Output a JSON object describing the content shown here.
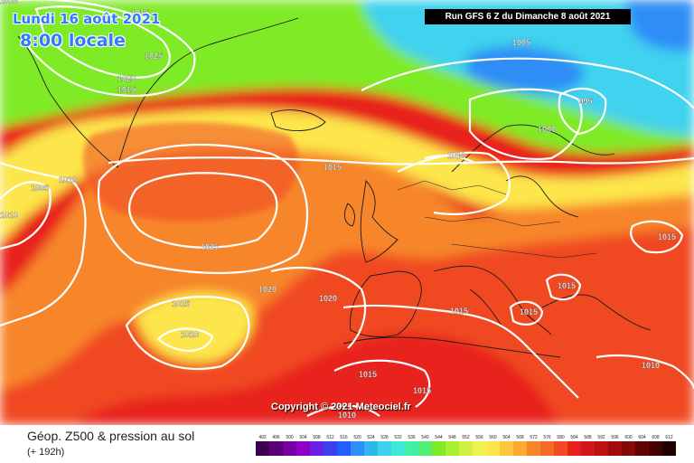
{
  "header": {
    "date": "Lundi 16 août 2021",
    "time": "8:00 locale",
    "run": "Run GFS 6 Z du Dimanche 8 août 2021"
  },
  "copyright": "Copyright © 2021 Meteociel.fr",
  "footer": {
    "title": "Géop. Z500 & pression au sol",
    "subtitle": "(+ 192h)"
  },
  "map": {
    "zones": [
      {
        "name": "high-geopotential-dark-red",
        "color": "#e8201e"
      },
      {
        "name": "high-geopotential-red",
        "color": "#f04a24"
      },
      {
        "name": "geopotential-orange",
        "color": "#f7862a"
      },
      {
        "name": "geopotential-yellow",
        "color": "#fde64c"
      },
      {
        "name": "geopotential-green",
        "color": "#7fea28"
      },
      {
        "name": "low-geopotential-cyan",
        "color": "#3fd2ee"
      },
      {
        "name": "low-geopotential-blue",
        "color": "#2d8ef6"
      }
    ],
    "isobar_labels": [
      "1025",
      "1020",
      "1015",
      "1005",
      "1000",
      "995",
      "1010",
      "1005",
      "1010",
      "1010",
      "1025",
      "1015",
      "1015",
      "1020",
      "1020",
      "1010",
      "1015",
      "1015",
      "1015",
      "1015",
      "1015",
      "1010",
      "1015",
      "1010",
      "1010",
      "1015"
    ]
  },
  "legend": {
    "labels": [
      "492",
      "496",
      "500",
      "504",
      "508",
      "512",
      "516",
      "520",
      "524",
      "528",
      "532",
      "536",
      "540",
      "544",
      "548",
      "552",
      "556",
      "560",
      "564",
      "568",
      "572",
      "576",
      "580",
      "584",
      "588",
      "592",
      "596",
      "600",
      "604",
      "608",
      "612"
    ],
    "colors": [
      "#3b0050",
      "#5a0078",
      "#7a00a0",
      "#9000c8",
      "#6a20e0",
      "#3a40f0",
      "#2060f8",
      "#2d8ef6",
      "#30b4f0",
      "#3fd2ee",
      "#40e8d8",
      "#40f0a8",
      "#50f070",
      "#7fea28",
      "#a8f030",
      "#d0f040",
      "#f0f050",
      "#fde64c",
      "#fcc840",
      "#fbaa36",
      "#f7862a",
      "#f46a26",
      "#f04a24",
      "#e8201e",
      "#d01818",
      "#b81212",
      "#a00c0c",
      "#860808",
      "#600404",
      "#400202",
      "#200000"
    ]
  }
}
